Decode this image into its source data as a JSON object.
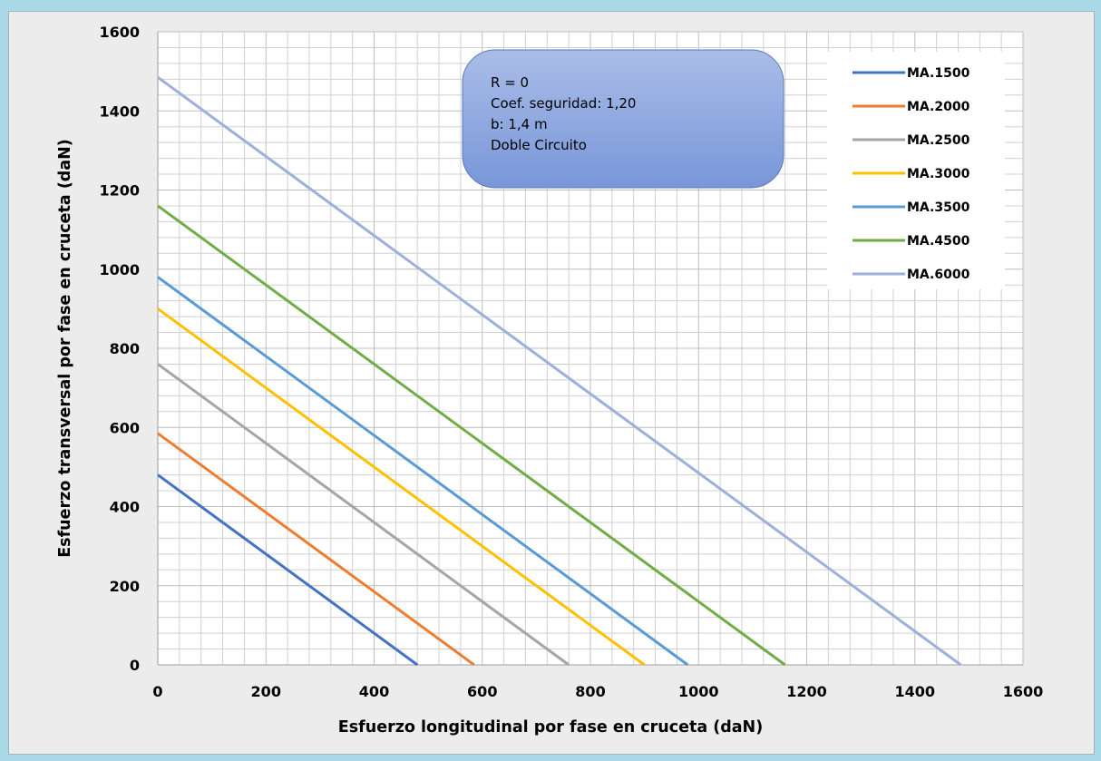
{
  "chart_data": {
    "type": "line",
    "xlabel": "Esfuerzo longitudinal por fase en cruceta (daN)",
    "ylabel": "Esfuerzo transversal por fase en cruceta (daN)",
    "xlim": [
      0,
      1600
    ],
    "ylim": [
      0,
      1600
    ],
    "x_ticks": [
      "0",
      "200",
      "400",
      "600",
      "800",
      "1000",
      "1200",
      "1400",
      "1600"
    ],
    "y_ticks": [
      "0",
      "200",
      "400",
      "600",
      "800",
      "1000",
      "1200",
      "1400",
      "1600"
    ],
    "grid": true,
    "legend_position": "top-right",
    "series": [
      {
        "name": "MA.1500",
        "color": "#4472c4",
        "x": [
          0,
          480
        ],
        "y": [
          480,
          0
        ]
      },
      {
        "name": "MA.2000",
        "color": "#ed7d31",
        "x": [
          0,
          585
        ],
        "y": [
          585,
          0
        ]
      },
      {
        "name": "MA.2500",
        "color": "#a5a5a5",
        "x": [
          0,
          760
        ],
        "y": [
          760,
          0
        ]
      },
      {
        "name": "MA.3000",
        "color": "#ffc000",
        "x": [
          0,
          900
        ],
        "y": [
          900,
          0
        ]
      },
      {
        "name": "MA.3500",
        "color": "#5b9bd5",
        "x": [
          0,
          980
        ],
        "y": [
          980,
          0
        ]
      },
      {
        "name": "MA.4500",
        "color": "#70ad47",
        "x": [
          0,
          1160
        ],
        "y": [
          1160,
          0
        ]
      },
      {
        "name": "MA.6000",
        "color": "#9dafdb",
        "x": [
          0,
          1485
        ],
        "y": [
          1485,
          0
        ]
      }
    ],
    "annotation": {
      "lines": [
        "R = 0",
        "Coef. seguridad: 1,20",
        "b: 1,4 m",
        "Doble Circuito"
      ]
    }
  }
}
